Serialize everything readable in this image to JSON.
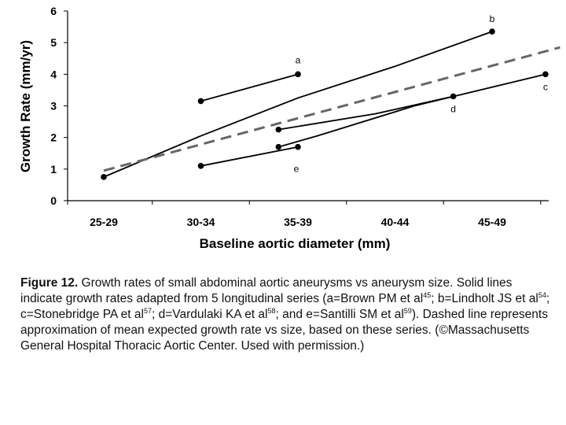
{
  "chart_data": {
    "type": "line",
    "categories": [
      "25-29",
      "30-34",
      "35-39",
      "40-44",
      "45-49"
    ],
    "ylim": [
      0,
      6
    ],
    "yticks": [
      0,
      1,
      2,
      3,
      4,
      5,
      6
    ],
    "xlabel": "Baseline aortic diameter (mm)",
    "ylabel": "Growth Rate (mm/yr)",
    "grid": false,
    "legend": "none",
    "series": [
      {
        "label": "a",
        "color": "#000000",
        "style": "solid",
        "points": [
          {
            "x": 1.0,
            "y": 3.15
          },
          {
            "x": 2.0,
            "y": 4.0
          }
        ]
      },
      {
        "label": "b",
        "color": "#000000",
        "style": "solid",
        "points": [
          {
            "x": 0.0,
            "y": 0.75
          },
          {
            "x": 1.0,
            "y": 2.05
          },
          {
            "x": 2.0,
            "y": 3.25
          },
          {
            "x": 3.0,
            "y": 4.25
          },
          {
            "x": 4.0,
            "y": 5.35
          }
        ]
      },
      {
        "label": "c",
        "color": "#000000",
        "style": "solid",
        "points": [
          {
            "x": 1.8,
            "y": 1.7
          },
          {
            "x": 2.2,
            "y": 2.05
          },
          {
            "x": 3.2,
            "y": 3.0
          },
          {
            "x": 4.55,
            "y": 4.0
          }
        ]
      },
      {
        "label": "d",
        "color": "#000000",
        "style": "solid",
        "points": [
          {
            "x": 1.8,
            "y": 2.25
          },
          {
            "x": 2.8,
            "y": 2.75
          },
          {
            "x": 3.6,
            "y": 3.3
          }
        ]
      },
      {
        "label": "e",
        "color": "#000000",
        "style": "solid",
        "points": [
          {
            "x": 1.0,
            "y": 1.1
          },
          {
            "x": 2.0,
            "y": 1.7
          }
        ]
      },
      {
        "label": "",
        "color": "#666666",
        "style": "dashed",
        "points": [
          {
            "x": 0.0,
            "y": 0.95
          },
          {
            "x": 4.7,
            "y": 4.85
          }
        ]
      }
    ]
  },
  "caption": {
    "figure_label": "Figure 12.",
    "text_1": " Growth rates of small abdominal aortic aneurysms vs aneurysm size. Solid lines indicate growth rates adapted from 5 longitudinal series (a=Brown PM et al",
    "ref_1": "45",
    "text_2": "; b=Lindholt JS et al",
    "ref_2": "54",
    "text_3": "; c=Stonebridge PA et al",
    "ref_3": "57",
    "text_4": "; d=Vardulaki KA et al",
    "ref_4": "58",
    "text_5": "; and e=Santilli SM et al",
    "ref_5": "59",
    "text_6": "). Dashed line represents approximation of mean expected growth rate vs size, based on these series. (©Massachusetts General Hospital Thoracic Aortic Center. Used with permission.)"
  }
}
